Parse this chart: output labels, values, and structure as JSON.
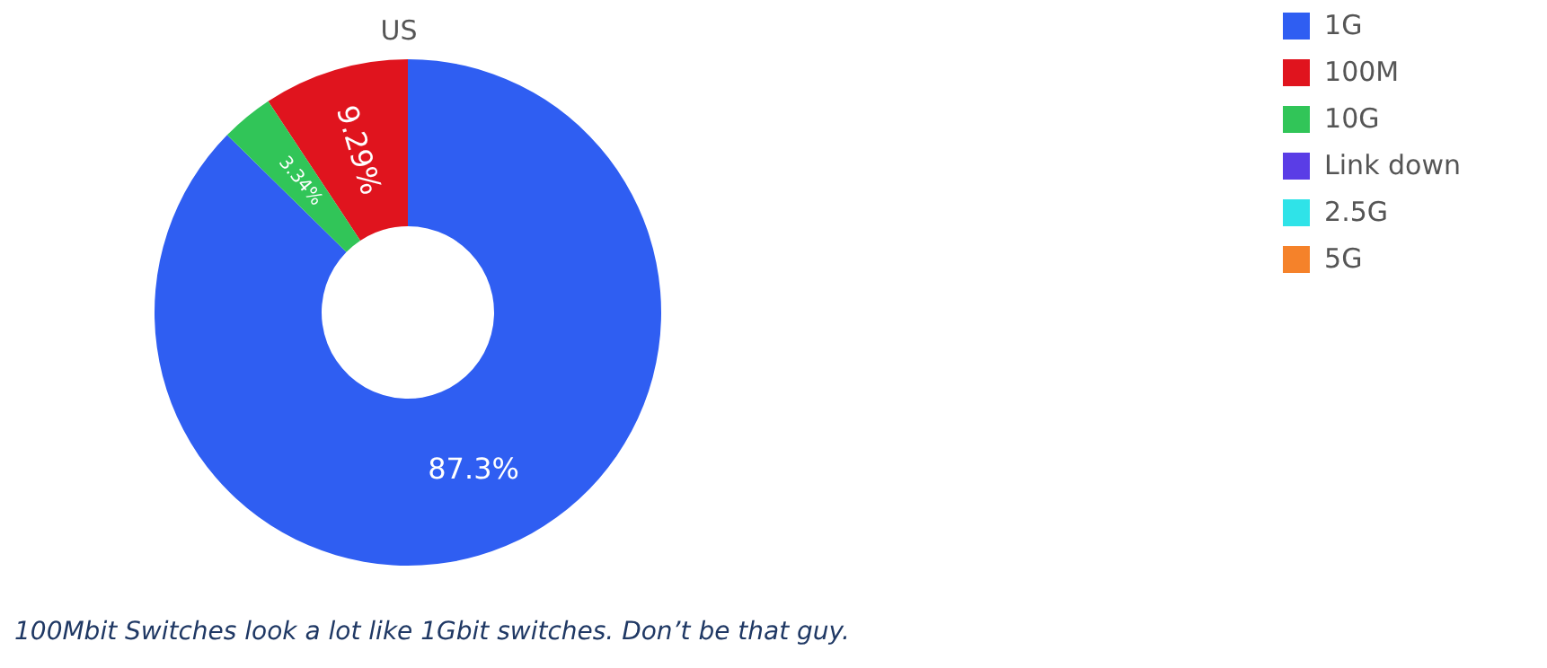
{
  "chart_data": {
    "type": "donut",
    "title": "US",
    "categories": [
      "1G",
      "100M",
      "10G",
      "Link down",
      "2.5G",
      "5G"
    ],
    "values": [
      87.3,
      9.29,
      3.34,
      null,
      null,
      null
    ],
    "colors": [
      "#2f5ef2",
      "#e0141e",
      "#31c558",
      "#5a3de6",
      "#2fe3e8",
      "#f5822a"
    ],
    "value_labels": [
      "87.3%",
      "9.29%",
      "3.34%",
      null,
      null,
      null
    ],
    "legend": "top right",
    "annotations": [
      "100Mbit Switches look a lot like 1Gbit switches. Don’t be that guy."
    ]
  }
}
